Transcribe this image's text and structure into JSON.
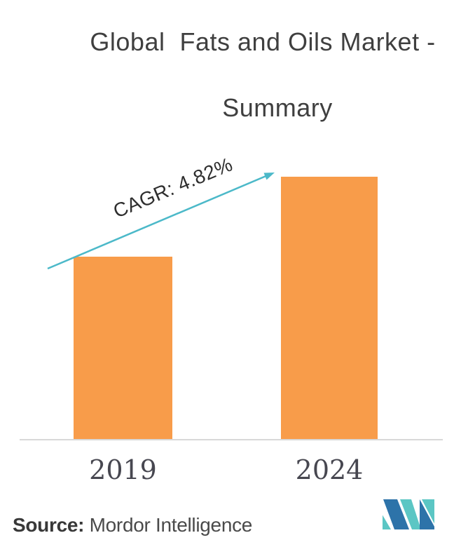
{
  "title": {
    "line1": "Global  Fats and Oils Market -",
    "line2": "Summary"
  },
  "chart_data": {
    "type": "bar",
    "title": "Global Fats and Oils Market - Summary",
    "categories": [
      "2019",
      "2024"
    ],
    "values": [
      69.5,
      100
    ],
    "note": "no numeric value axis shown; values are relative bar heights (2024 indexed to 100)",
    "annotation": "CAGR: 4.82%",
    "bar_color": "#f89c4a",
    "arrow_color": "#4cb9c9",
    "grid": false,
    "legend": "none",
    "xlabel": "",
    "ylabel": ""
  },
  "annotation": {
    "cagr_label": "CAGR: 4.82%"
  },
  "source": {
    "label": "Source:",
    "value": " Mordor Intelligence"
  },
  "logo": {
    "name": "Mordor Intelligence",
    "color_dark": "#2d73a9",
    "color_teal": "#5bc6c4"
  },
  "colors": {
    "background": "#ffffff",
    "bar": "#f89c4a",
    "arrow": "#4cb9c9",
    "axis_line": "#d8d8d8",
    "title_text": "#3f3f3f",
    "tick_text": "#474750",
    "source_text": "#4a4a4a"
  }
}
